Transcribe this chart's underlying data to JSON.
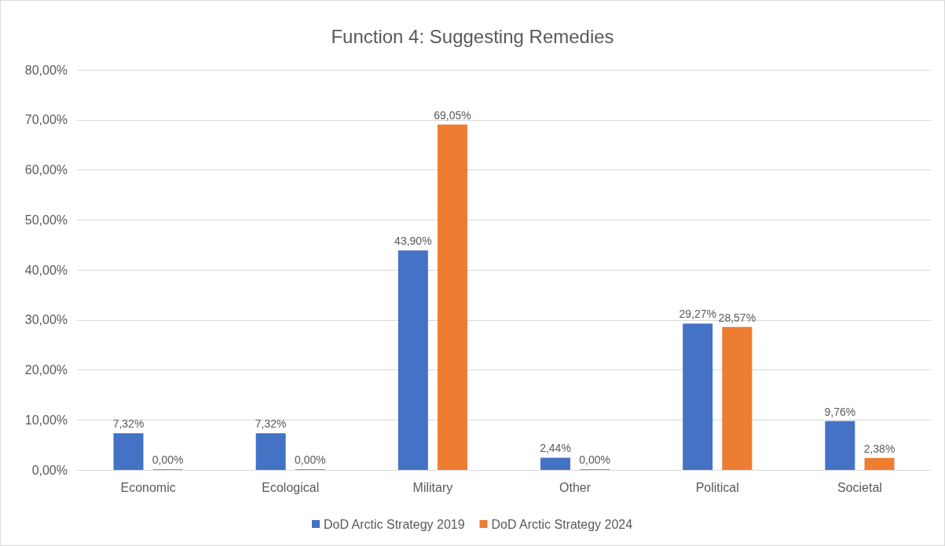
{
  "chart_data": {
    "type": "bar",
    "title": "Function 4: Suggesting Remedies",
    "categories": [
      "Economic",
      "Ecological",
      "Military",
      "Other",
      "Political",
      "Societal"
    ],
    "series": [
      {
        "name": "DoD Arctic Strategy 2019",
        "color": "#4472c4",
        "values": [
          7.32,
          7.32,
          43.9,
          2.44,
          29.27,
          9.76
        ],
        "value_labels": [
          "7,32%",
          "7,32%",
          "43,90%",
          "2,44%",
          "29,27%",
          "9,76%"
        ]
      },
      {
        "name": "DoD Arctic Strategy 2024",
        "color": "#ed7d31",
        "values": [
          0,
          0,
          69.05,
          0,
          28.57,
          2.38
        ],
        "value_labels": [
          "0,00%",
          "0,00%",
          "69,05%",
          "0,00%",
          "28,57%",
          "2,38%"
        ]
      }
    ],
    "ylim": [
      0,
      80
    ],
    "yticks": [
      {
        "value": 0,
        "label": "0,00%"
      },
      {
        "value": 10,
        "label": "10,00%"
      },
      {
        "value": 20,
        "label": "20,00%"
      },
      {
        "value": 30,
        "label": "30,00%"
      },
      {
        "value": 40,
        "label": "40,00%"
      },
      {
        "value": 50,
        "label": "50,00%"
      },
      {
        "value": 60,
        "label": "60,00%"
      },
      {
        "value": 70,
        "label": "70,00%"
      },
      {
        "value": 80,
        "label": "80,00%"
      }
    ],
    "grid": "y",
    "legend": "bottom"
  }
}
